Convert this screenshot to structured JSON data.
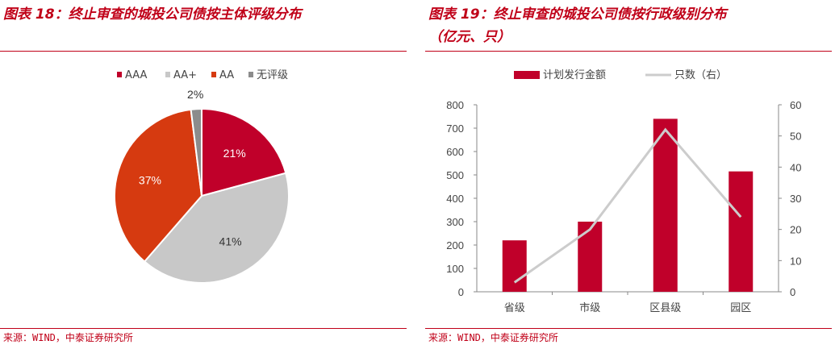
{
  "left": {
    "title": "图表 18：终止审查的城投公司债按主体评级分布",
    "source": "来源：WIND，中泰证券研究所"
  },
  "right": {
    "title_line1": "图表 19：终止审查的城投公司债按行政级别分布",
    "title_line2": "（亿元、只）",
    "source": "来源：WIND，中泰证券研究所"
  },
  "colors": {
    "brand_red": "#c00018",
    "aaa": "#c0002a",
    "aa_plus": "#c8c8c8",
    "aa": "#d63a10",
    "unrated": "#8c8c8c",
    "line": "#cccccc"
  },
  "chart_data": [
    {
      "type": "pie",
      "title": "图表 18：终止审查的城投公司债按主体评级分布",
      "legend_position": "top",
      "categories": [
        "AAA",
        "AA+",
        "AA",
        "无评级"
      ],
      "values": [
        21,
        41,
        37,
        2
      ],
      "labels": [
        "21%",
        "41%",
        "37%",
        "2%"
      ],
      "colors": [
        "#c0002a",
        "#c8c8c8",
        "#d63a10",
        "#8c8c8c"
      ]
    },
    {
      "type": "bar",
      "title": "图表 19：终止审查的城投公司债按行政级别分布（亿元、只）",
      "legend_position": "top",
      "categories": [
        "省级",
        "市级",
        "区县级",
        "园区"
      ],
      "series": [
        {
          "name": "计划发行金额",
          "type": "bar",
          "axis": "left",
          "color": "#c0002a",
          "values": [
            220,
            300,
            740,
            515
          ]
        },
        {
          "name": "只数（右）",
          "type": "line",
          "axis": "right",
          "color": "#cccccc",
          "values": [
            3,
            20,
            52,
            24
          ]
        }
      ],
      "ylim": [
        0,
        800
      ],
      "yticks": [
        "0",
        "100",
        "200",
        "300",
        "400",
        "500",
        "600",
        "700",
        "800"
      ],
      "y2lim": [
        0,
        60
      ],
      "y2ticks": [
        "0",
        "10",
        "20",
        "30",
        "40",
        "50",
        "60"
      ],
      "grid": false
    }
  ]
}
